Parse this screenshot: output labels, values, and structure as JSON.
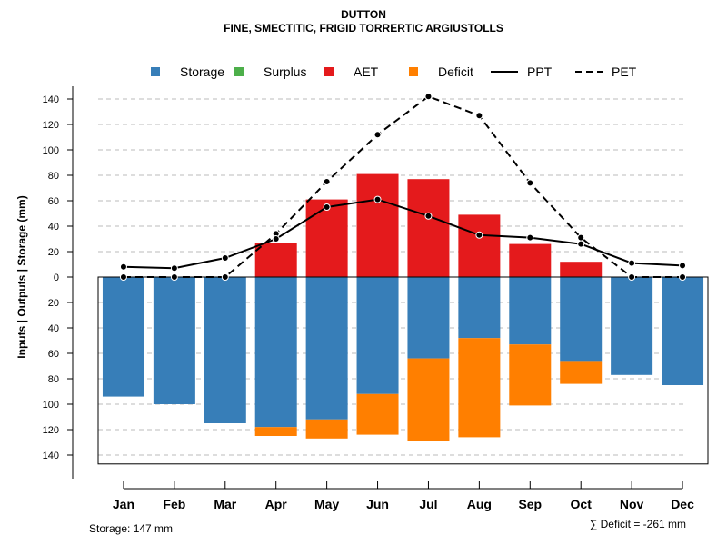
{
  "title_line1": "DUTTON",
  "title_line2": "FINE, SMECTITIC, FRIGID TORRERTIC ARGIUSTOLLS",
  "footer_left": "Storage: 147 mm",
  "footer_right": "∑ Deficit = -261 mm",
  "colors": {
    "storage": "#377eb8",
    "surplus": "#4daf4a",
    "aet": "#e41a1c",
    "deficit": "#ff7f00",
    "grid": "#bbbbbb",
    "line": "#000000"
  },
  "chart_data": {
    "type": "bar",
    "ylabel": "Inputs | Outputs | Storage    (mm)",
    "ylim": [
      -147,
      147
    ],
    "y_ticks": [
      -140,
      -120,
      -100,
      -80,
      -60,
      -40,
      -20,
      0,
      20,
      40,
      60,
      80,
      100,
      120,
      140
    ],
    "y_tick_labels": [
      "140",
      "120",
      "100",
      "80",
      "60",
      "40",
      "20",
      "0",
      "20",
      "40",
      "60",
      "80",
      "100",
      "120",
      "140"
    ],
    "categories": [
      "Jan",
      "Feb",
      "Mar",
      "Apr",
      "May",
      "Jun",
      "Jul",
      "Aug",
      "Sep",
      "Oct",
      "Nov",
      "Dec"
    ],
    "legend": [
      {
        "label": "Storage",
        "kind": "box",
        "color_key": "storage"
      },
      {
        "label": "Surplus",
        "kind": "box",
        "color_key": "surplus"
      },
      {
        "label": "AET",
        "kind": "box",
        "color_key": "aet"
      },
      {
        "label": "Deficit",
        "kind": "box",
        "color_key": "deficit"
      },
      {
        "label": "PPT",
        "kind": "solid"
      },
      {
        "label": "PET",
        "kind": "dashed"
      }
    ],
    "series": [
      {
        "name": "Storage",
        "values": [
          94,
          100,
          115,
          118,
          112,
          92,
          64,
          48,
          53,
          66,
          77,
          85
        ]
      },
      {
        "name": "Deficit",
        "values": [
          0,
          0,
          0,
          7,
          15,
          32,
          65,
          78,
          48,
          18,
          0,
          0
        ]
      },
      {
        "name": "Surplus",
        "values": [
          0,
          0,
          0,
          0,
          0,
          0,
          0,
          0,
          0,
          0,
          0,
          0
        ]
      },
      {
        "name": "AET",
        "values": [
          0,
          0,
          0,
          27,
          61,
          81,
          77,
          49,
          26,
          12,
          0,
          0
        ]
      },
      {
        "name": "PPT",
        "values": [
          8,
          7,
          15,
          30,
          55,
          61,
          48,
          33,
          31,
          26,
          11,
          9
        ]
      },
      {
        "name": "PET",
        "values": [
          0,
          0,
          0,
          34,
          75,
          112,
          142,
          127,
          74,
          31,
          0,
          0
        ]
      }
    ]
  }
}
